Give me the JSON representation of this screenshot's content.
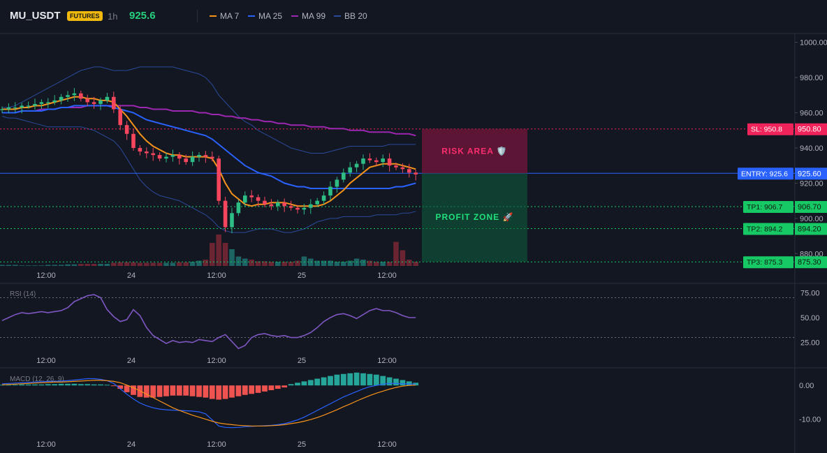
{
  "header": {
    "symbol": "MU_USDT",
    "badge": "FUTURES",
    "timeframe": "1h",
    "price": "925.6",
    "legend": [
      {
        "label": "MA 7",
        "color": "#f7931a"
      },
      {
        "label": "MA 25",
        "color": "#2962ff"
      },
      {
        "label": "MA 99",
        "color": "#9c27b0"
      },
      {
        "label": "BB 20",
        "color": "#2a4a9a"
      }
    ]
  },
  "colors": {
    "up": "#26a69a",
    "up_bright": "#2ebd85",
    "down": "#f6465d",
    "sl": "#f0245a",
    "entry": "#2962ff",
    "tp": "#17c964"
  },
  "chart_data": [
    {
      "type": "line",
      "pane": "price",
      "x_ticks": [
        "12:00",
        "24",
        "12:00",
        "25",
        "12:00"
      ],
      "y_ticks": [
        "1000.00",
        "980.00",
        "960.00",
        "940.00",
        "920.00",
        "900.00",
        "880.00"
      ],
      "ylim": [
        873,
        1005
      ],
      "close": [
        962,
        963,
        963,
        964,
        964,
        965,
        966,
        966,
        967,
        969,
        970,
        971,
        968,
        966,
        965,
        967,
        969,
        962,
        953,
        948,
        940,
        938,
        937,
        936,
        934,
        935,
        936,
        934,
        932,
        935,
        936,
        935,
        934,
        910,
        895,
        903,
        909,
        913,
        912,
        910,
        908,
        907,
        909,
        907,
        906,
        905,
        906,
        908,
        910,
        913,
        918,
        922,
        926,
        929,
        931,
        934,
        933,
        932,
        934,
        930,
        929,
        928,
        926,
        925
      ],
      "volume": [
        1,
        1,
        1,
        0.5,
        0.5,
        0.5,
        0.5,
        1,
        1,
        1,
        1.5,
        1.5,
        2,
        2,
        2,
        2,
        2,
        3,
        3.5,
        3.5,
        3.5,
        3,
        3,
        3,
        3,
        3,
        3,
        3.5,
        3.5,
        4,
        5,
        6,
        22,
        30,
        22,
        16,
        9,
        7,
        6,
        4.5,
        4.5,
        4,
        4,
        4,
        4,
        5,
        9,
        7,
        5,
        5,
        5,
        4,
        4,
        5,
        7,
        6,
        5,
        4,
        4,
        4,
        23,
        15,
        6,
        4
      ],
      "overlays": {
        "ma7": [
          962,
          962,
          962,
          963,
          963,
          964,
          964,
          965,
          966,
          967,
          968,
          969,
          969,
          968,
          968,
          967,
          967,
          966,
          962,
          958,
          953,
          948,
          944,
          941,
          939,
          937,
          936,
          936,
          935,
          935,
          935,
          935,
          934,
          928,
          920,
          914,
          911,
          908,
          907,
          908,
          908,
          909,
          909,
          909,
          908,
          907,
          907,
          907,
          907,
          908,
          910,
          913,
          916,
          920,
          923,
          926,
          929,
          930,
          931,
          931,
          931,
          930,
          929,
          928
        ],
        "ma25": [
          960,
          960,
          960,
          961,
          961,
          961,
          961,
          962,
          962,
          963,
          963,
          964,
          964,
          964,
          964,
          964,
          964,
          963,
          962,
          961,
          960,
          958,
          956,
          955,
          954,
          953,
          952,
          951,
          950,
          949,
          948,
          947,
          945,
          942,
          939,
          936,
          933,
          930,
          928,
          926,
          925,
          924,
          922,
          920,
          919,
          918,
          918,
          917,
          917,
          917,
          917,
          917,
          917,
          917,
          917,
          917,
          917,
          917,
          917,
          917,
          918,
          918,
          919,
          920
        ],
        "ma99": [
          960,
          960,
          960,
          961,
          961,
          961,
          962,
          962,
          962,
          963,
          963,
          963,
          963,
          964,
          964,
          964,
          964,
          964,
          964,
          964,
          964,
          963,
          963,
          962,
          962,
          962,
          961,
          961,
          961,
          961,
          960,
          960,
          959,
          959,
          958,
          958,
          957,
          957,
          956,
          956,
          955,
          955,
          954,
          954,
          953,
          953,
          953,
          952,
          952,
          952,
          951,
          951,
          951,
          950,
          950,
          950,
          949,
          949,
          949,
          949,
          948,
          948,
          948,
          947
        ],
        "bb_upper": [
          963,
          963,
          964,
          966,
          968,
          970,
          972,
          974,
          976,
          978,
          980,
          982,
          984,
          985,
          986,
          986,
          985,
          984,
          984,
          984,
          985,
          986,
          986,
          986,
          986,
          986,
          986,
          985,
          984,
          983,
          982,
          980,
          976,
          970,
          966,
          962,
          958,
          955,
          953,
          950,
          948,
          946,
          944,
          942,
          940,
          939,
          938,
          937,
          937,
          937,
          938,
          939,
          940,
          941,
          941,
          941,
          941,
          941,
          941,
          942,
          942,
          942,
          942,
          942
        ],
        "bb_lower": [
          958,
          957,
          957,
          956,
          955,
          954,
          953,
          952,
          952,
          952,
          952,
          952,
          952,
          951,
          950,
          948,
          946,
          944,
          940,
          934,
          928,
          922,
          918,
          915,
          913,
          912,
          911,
          910,
          908,
          906,
          904,
          902,
          899,
          895,
          893,
          892,
          892,
          892,
          893,
          894,
          894,
          894,
          893,
          892,
          892,
          893,
          894,
          896,
          898,
          899,
          900,
          900,
          901,
          901,
          901,
          901,
          901,
          902,
          902,
          902,
          902,
          903,
          903,
          904
        ]
      },
      "levels": {
        "sl": {
          "tag": "SL: 950.8",
          "value": 950.8,
          "price_label": "950.80"
        },
        "entry": {
          "tag": "ENTRY: 925.6",
          "value": 925.6,
          "price_label": "925.60"
        },
        "tp1": {
          "tag": "TP1: 906.7",
          "value": 906.7,
          "price_label": "906.70"
        },
        "tp2": {
          "tag": "TP2: 894.2",
          "value": 894.2,
          "price_label": "894.20"
        },
        "tp3": {
          "tag": "TP3: 875.3",
          "value": 875.3,
          "price_label": "875.30"
        }
      },
      "zones": {
        "risk_label": "RISK AREA 🛡️",
        "profit_label": "PROFIT ZONE 🚀"
      }
    },
    {
      "type": "line",
      "pane": "rsi",
      "title": "RSI (14)",
      "y_ticks": [
        "75.00",
        "50.00",
        "25.00"
      ],
      "ylim": [
        15,
        85
      ],
      "x_ticks": [
        "12:00",
        "24",
        "12:00",
        "25",
        "12:00"
      ],
      "guides": [
        70,
        30
      ],
      "values": [
        47,
        50,
        53,
        55,
        54,
        55,
        56,
        55,
        56,
        57,
        60,
        66,
        69,
        72,
        73,
        70,
        58,
        51,
        46,
        48,
        58,
        52,
        40,
        32,
        28,
        24,
        27,
        25,
        26,
        25,
        28,
        27,
        26,
        30,
        33,
        26,
        19,
        22,
        30,
        33,
        34,
        32,
        31,
        32,
        30,
        30,
        32,
        35,
        40,
        46,
        50,
        53,
        54,
        52,
        49,
        53,
        57,
        59,
        57,
        57,
        55,
        52,
        50,
        50
      ]
    },
    {
      "type": "bar",
      "pane": "macd",
      "title": "MACD (12, 26, 9)",
      "y_ticks": [
        "0.00",
        "-10.00"
      ],
      "ylim": [
        -14,
        5
      ],
      "x_ticks": [
        "12:00",
        "24",
        "12:00",
        "25",
        "12:00"
      ],
      "histogram": [
        0.2,
        0.2,
        0.2,
        0.3,
        0.3,
        0.3,
        0.3,
        0.4,
        0.4,
        0.5,
        0.5,
        0.5,
        0.4,
        0.4,
        0.3,
        0.3,
        0.2,
        -0.2,
        -1,
        -2,
        -2.8,
        -3.4,
        -3.6,
        -3.6,
        -3.4,
        -3.2,
        -3,
        -3,
        -3,
        -3.2,
        -3.4,
        -3.6,
        -4,
        -4.2,
        -4,
        -3.6,
        -3.2,
        -2.8,
        -2.5,
        -2.2,
        -1.8,
        -1.4,
        -1,
        -0.6,
        0.4,
        0.8,
        1.2,
        1.6,
        2,
        2.4,
        2.8,
        3.2,
        3.4,
        3.6,
        3.8,
        3.6,
        3.4,
        3.2,
        2.8,
        2.4,
        2,
        1.6,
        1.2,
        0.8
      ],
      "macd_line": [
        0.5,
        0.6,
        0.7,
        0.8,
        0.9,
        1,
        1.1,
        1.2,
        1.2,
        1.3,
        1.4,
        1.6,
        1.8,
        2,
        2,
        1.8,
        1.4,
        0.6,
        -1,
        -2.6,
        -4,
        -5.2,
        -6,
        -6.6,
        -7,
        -7.2,
        -7.3,
        -7.4,
        -7.5,
        -7.6,
        -7.8,
        -8.4,
        -10.2,
        -12,
        -12.4,
        -12.5,
        -12.4,
        -12.2,
        -12.1,
        -12,
        -11.9,
        -11.8,
        -11.6,
        -11.3,
        -10.8,
        -10.2,
        -9.4,
        -8.4,
        -7.4,
        -6.4,
        -5.4,
        -4.4,
        -3.4,
        -2.6,
        -1.8,
        -1,
        -0.4,
        0,
        0.4,
        0.6,
        0.6,
        0.5,
        0.4,
        0.4
      ],
      "signal_line": [
        0.2,
        0.3,
        0.4,
        0.5,
        0.6,
        0.7,
        0.8,
        0.9,
        1,
        1,
        1.1,
        1.2,
        1.3,
        1.4,
        1.5,
        1.5,
        1.4,
        1.2,
        0.8,
        0.1,
        -0.7,
        -1.6,
        -2.6,
        -3.6,
        -4.6,
        -5.6,
        -6.6,
        -7.4,
        -8.1,
        -8.8,
        -9.4,
        -10,
        -10.6,
        -11.1,
        -11.4,
        -11.6,
        -11.8,
        -11.9,
        -12,
        -12,
        -12,
        -11.9,
        -11.8,
        -11.6,
        -11.3,
        -11,
        -10.6,
        -10.1,
        -9.5,
        -8.8,
        -8,
        -7.2,
        -6.3,
        -5.5,
        -4.6,
        -3.8,
        -3,
        -2.3,
        -1.7,
        -1.1,
        -0.6,
        -0.2,
        0,
        0.1
      ]
    }
  ]
}
